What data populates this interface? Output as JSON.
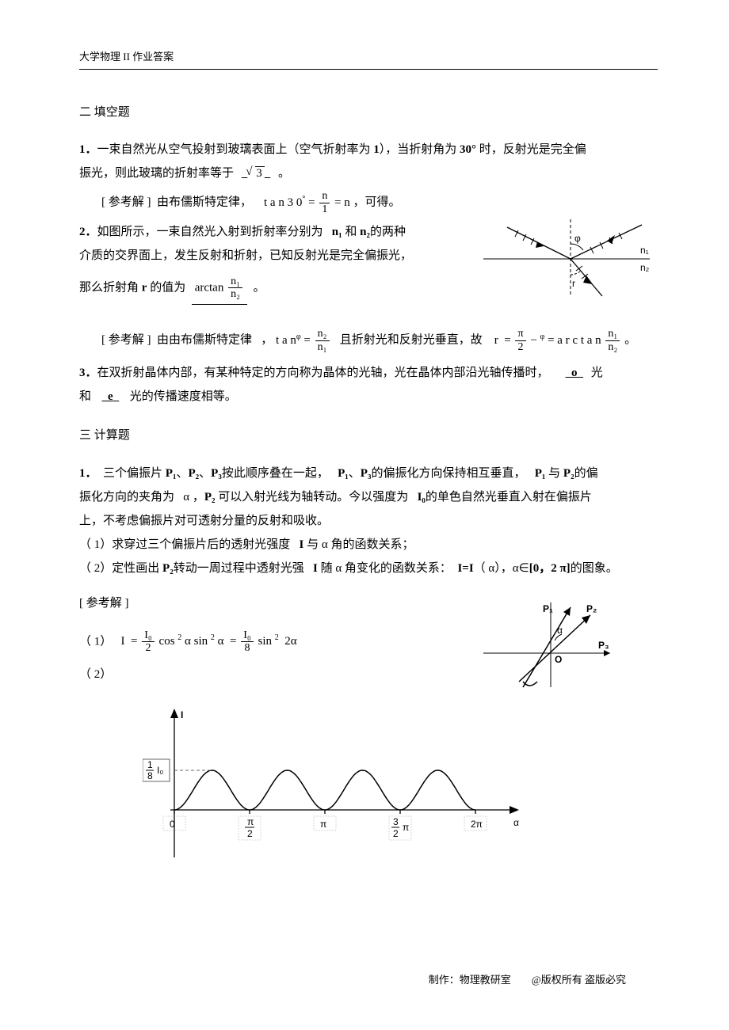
{
  "header": {
    "title": "大学物理 II 作业答案"
  },
  "footer": {
    "credit": "制作：物理教研室",
    "copyright": "@版权所有   盗版必究"
  },
  "sec2": {
    "title": "二 填空题",
    "q1": {
      "num": "1．",
      "text1": "一束自然光从空气投射到玻璃表面上（空气折射率为",
      "val1": "1",
      "text2": "），当折射角为",
      "angle": "30°",
      "text3": "时，反射光是完全偏",
      "text4": "振光，则此玻璃的折射率等于",
      "answer": "3",
      "text5": "。",
      "sol_label": "[ 参考解 ]",
      "sol_text1": "由布儒斯特定律，",
      "sol_eq_lhs": "t a n 3 0",
      "sol_eq_deg": "°",
      "sol_eq_eq": "=",
      "sol_eq_num": "n",
      "sol_eq_den": "1",
      "sol_eq_rhs": "= n",
      "sol_text2": "，可得。"
    },
    "q2": {
      "num": "2．",
      "text1": "如图所示，一束自然光入射到折射率分别为",
      "n1": "n₁",
      "and": "和",
      "n2": "n₂",
      "text2": "的两种",
      "text3": "介质的交界面上，发生反射和折射，已知反射光是完全偏振光，",
      "text4": "那么折射角",
      "r": "r",
      "text5": "的值为",
      "ans_func": "arctan",
      "ans_num": "n₁",
      "ans_den": "n₂",
      "text6": "。",
      "sol_label": "[ 参考解 ]",
      "sol_text1": "由由布儒斯特定律",
      "sol_text2": "，",
      "tan": "t a n",
      "phi": "φ",
      "eq": "=",
      "frac2_num": "n₂",
      "frac2_den": "n₁",
      "sol_text3": "且折射光和反射光垂直，故",
      "r_eq_l": "r",
      "r_eq_eq": "=",
      "pi_num": "π",
      "pi_den": "2",
      "minus": "−",
      "phi2": "φ",
      "arctan": "= a r c t a n",
      "frac3_num": "n₁",
      "frac3_den": "n₂",
      "period": "。",
      "fig": {
        "n1": "n₁",
        "n2": "n₂",
        "phi": "φ",
        "r": "r"
      }
    },
    "q3": {
      "num": "3．",
      "text1": "在双折射晶体内部，有某种特定的方向称为晶体的光轴，光在晶体内部沿光轴传播时，",
      "ans1": "o",
      "text2": "光",
      "text3": "和",
      "ans2": "e",
      "text4": "光的传播速度相等。"
    }
  },
  "sec3": {
    "title": "三 计算题",
    "q1": {
      "num": "1．",
      "text1": "三个偏振片",
      "P1": "P₁",
      "sep1": "、",
      "P2": "P₂",
      "sep2": "、",
      "P3": "P₃",
      "text2": "按此顺序叠在一起，",
      "text3": "的偏振化方向保持相互垂直，",
      "text4": "与",
      "text5": "的偏",
      "text6": "振化方向的夹角为",
      "alpha": "α ，",
      "text7": "可以入射光线为轴转动。今以强度为",
      "I0": "I₀",
      "text8": "的单色自然光垂直入射在偏振片",
      "text9": "上，不考虑偏振片对可透射分量的反射和吸收。",
      "sub1_num": "（ 1）",
      "sub1_text": "求穿过三个偏振片后的透射光强度",
      "I": "I",
      "sub1_text2": "与 α 角的函数关系；",
      "sub2_num": "（ 2）",
      "sub2_text": "定性画出",
      "sub2_text2": "转动一周过程中透射光强",
      "sub2_text3": "随 α 角变化的函数关系：",
      "Ieq": "I=I",
      "sub2_text4": "（ α），α∈",
      "range": "[0，2 π]",
      "sub2_text5": "的图象。",
      "sol_label": "[ 参考解 ]",
      "part1_num": "（ 1）",
      "eq_I": "I",
      "eq_eq": "=",
      "eq_f1_num": "I₀",
      "eq_f1_den": "2",
      "eq_cos": "cos",
      "eq_sup2": "2",
      "eq_a": "α",
      "eq_sin": "sin",
      "eq_eq2": "=",
      "eq_f2_num": "I₀",
      "eq_f2_den": "8",
      "eq_2a": "2α",
      "part2_num": "（ 2）",
      "polarizer_fig": {
        "P1": "P₁",
        "P2": "P₂",
        "P3": "P₃",
        "O": "O",
        "alpha": "α"
      },
      "chart": {
        "type": "line",
        "xlabel": "α",
        "ylabel": "I",
        "ylabel_mark_num": "1",
        "ylabel_mark_den": "8",
        "ylabel_mark_I": "I₀",
        "periods": 4,
        "xlim": [
          0,
          420
        ],
        "ylim": [
          0,
          70
        ],
        "amplitude": 50,
        "yaxis_x": 40,
        "baseline_y": 60,
        "color": "#000000",
        "dash_color": "#666666",
        "xticks": [
          {
            "x": 40,
            "label_top": "0",
            "label_bot": ""
          },
          {
            "x": 135,
            "label_top": "π",
            "label_bot": "2",
            "frac": true
          },
          {
            "x": 230,
            "label_top": "π",
            "label_bot": ""
          },
          {
            "x": 325,
            "label_top": "3",
            "label_bot": "2",
            "suffix": "π",
            "frac": true
          },
          {
            "x": 420,
            "label_top": "2π",
            "label_bot": ""
          }
        ]
      }
    }
  }
}
